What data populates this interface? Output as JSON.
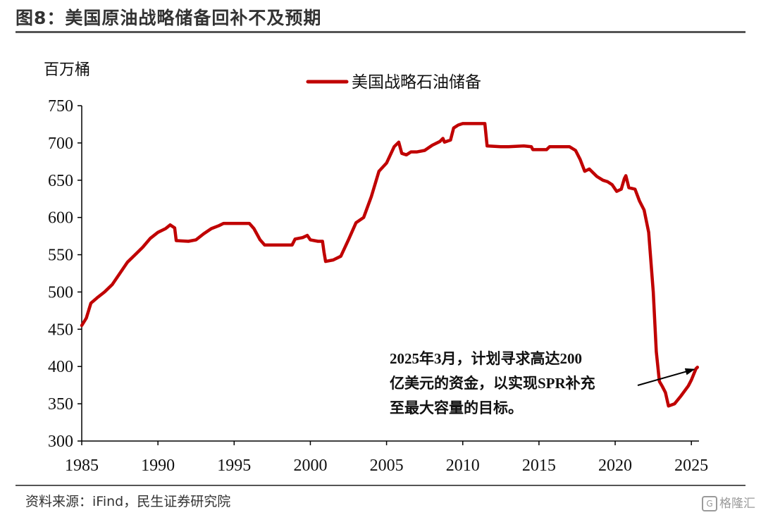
{
  "header": {
    "title": "图8：美国原油战略储备回补不及预期"
  },
  "footer": {
    "source": "资料来源：iFind，民生证券研究院",
    "watermark": "格隆汇"
  },
  "colors": {
    "series": "#C00000",
    "axis": "#000000",
    "rule": "#555555"
  },
  "chart_data": {
    "type": "line",
    "title": "",
    "xlabel": "",
    "ylabel": "百万桶",
    "xlim": [
      1985,
      2025.5
    ],
    "ylim": [
      300,
      750
    ],
    "grid": false,
    "legend_position": "top-center",
    "x_ticks": [
      "1985",
      "1990",
      "1995",
      "2000",
      "2005",
      "2010",
      "2015",
      "2020",
      "2025"
    ],
    "y_ticks": [
      "300",
      "350",
      "400",
      "450",
      "500",
      "550",
      "600",
      "650",
      "700",
      "750"
    ],
    "series": [
      {
        "name": "美国战略石油储备",
        "color": "#C00000",
        "points": [
          [
            1985.0,
            455
          ],
          [
            1985.3,
            465
          ],
          [
            1985.6,
            485
          ],
          [
            1986.0,
            492
          ],
          [
            1986.5,
            500
          ],
          [
            1987.0,
            510
          ],
          [
            1987.5,
            525
          ],
          [
            1988.0,
            540
          ],
          [
            1988.5,
            550
          ],
          [
            1989.0,
            560
          ],
          [
            1989.5,
            572
          ],
          [
            1990.0,
            580
          ],
          [
            1990.5,
            585
          ],
          [
            1990.8,
            590
          ],
          [
            1991.1,
            586
          ],
          [
            1991.2,
            569
          ],
          [
            1992.0,
            568
          ],
          [
            1992.5,
            570
          ],
          [
            1993.0,
            578
          ],
          [
            1993.5,
            585
          ],
          [
            1994.0,
            589
          ],
          [
            1994.3,
            592
          ],
          [
            1995.5,
            592
          ],
          [
            1996.0,
            592
          ],
          [
            1996.3,
            585
          ],
          [
            1996.7,
            570
          ],
          [
            1997.0,
            563
          ],
          [
            1998.0,
            563
          ],
          [
            1998.8,
            563
          ],
          [
            1999.0,
            571
          ],
          [
            1999.5,
            573
          ],
          [
            1999.8,
            576
          ],
          [
            2000.0,
            570
          ],
          [
            2000.5,
            568
          ],
          [
            2000.8,
            568
          ],
          [
            2000.9,
            553
          ],
          [
            2001.0,
            541
          ],
          [
            2001.5,
            543
          ],
          [
            2002.0,
            548
          ],
          [
            2002.5,
            570
          ],
          [
            2003.0,
            593
          ],
          [
            2003.5,
            600
          ],
          [
            2004.0,
            628
          ],
          [
            2004.5,
            662
          ],
          [
            2005.0,
            673
          ],
          [
            2005.5,
            695
          ],
          [
            2005.8,
            701
          ],
          [
            2006.0,
            686
          ],
          [
            2006.3,
            684
          ],
          [
            2006.6,
            688
          ],
          [
            2007.0,
            688
          ],
          [
            2007.5,
            690
          ],
          [
            2008.0,
            697
          ],
          [
            2008.5,
            702
          ],
          [
            2008.7,
            706
          ],
          [
            2008.8,
            701
          ],
          [
            2009.2,
            704
          ],
          [
            2009.4,
            720
          ],
          [
            2009.7,
            724
          ],
          [
            2010.0,
            726
          ],
          [
            2011.2,
            726
          ],
          [
            2011.45,
            726
          ],
          [
            2011.6,
            696
          ],
          [
            2012.5,
            695
          ],
          [
            2013.0,
            695
          ],
          [
            2014.0,
            696
          ],
          [
            2014.5,
            695
          ],
          [
            2014.6,
            691
          ],
          [
            2015.5,
            691
          ],
          [
            2015.7,
            695
          ],
          [
            2016.5,
            695
          ],
          [
            2017.0,
            695
          ],
          [
            2017.4,
            690
          ],
          [
            2017.7,
            678
          ],
          [
            2018.0,
            662
          ],
          [
            2018.3,
            665
          ],
          [
            2018.8,
            655
          ],
          [
            2019.2,
            650
          ],
          [
            2019.5,
            648
          ],
          [
            2019.8,
            644
          ],
          [
            2020.1,
            635
          ],
          [
            2020.4,
            638
          ],
          [
            2020.6,
            652
          ],
          [
            2020.7,
            656
          ],
          [
            2020.9,
            640
          ],
          [
            2021.3,
            638
          ],
          [
            2021.6,
            622
          ],
          [
            2021.9,
            610
          ],
          [
            2022.2,
            580
          ],
          [
            2022.5,
            500
          ],
          [
            2022.7,
            420
          ],
          [
            2022.9,
            380
          ],
          [
            2023.1,
            373
          ],
          [
            2023.3,
            365
          ],
          [
            2023.5,
            347
          ],
          [
            2023.9,
            350
          ],
          [
            2024.3,
            360
          ],
          [
            2024.8,
            374
          ],
          [
            2025.0,
            382
          ],
          [
            2025.3,
            397
          ],
          [
            2025.4,
            399
          ]
        ]
      }
    ],
    "annotations": [
      {
        "lines": [
          "2025年3月，计划寻求高达200",
          "亿美元的资金，以实现SPR补充",
          "至最大容量的目标。"
        ],
        "arrow_to": [
          2025.3,
          399
        ]
      }
    ]
  }
}
